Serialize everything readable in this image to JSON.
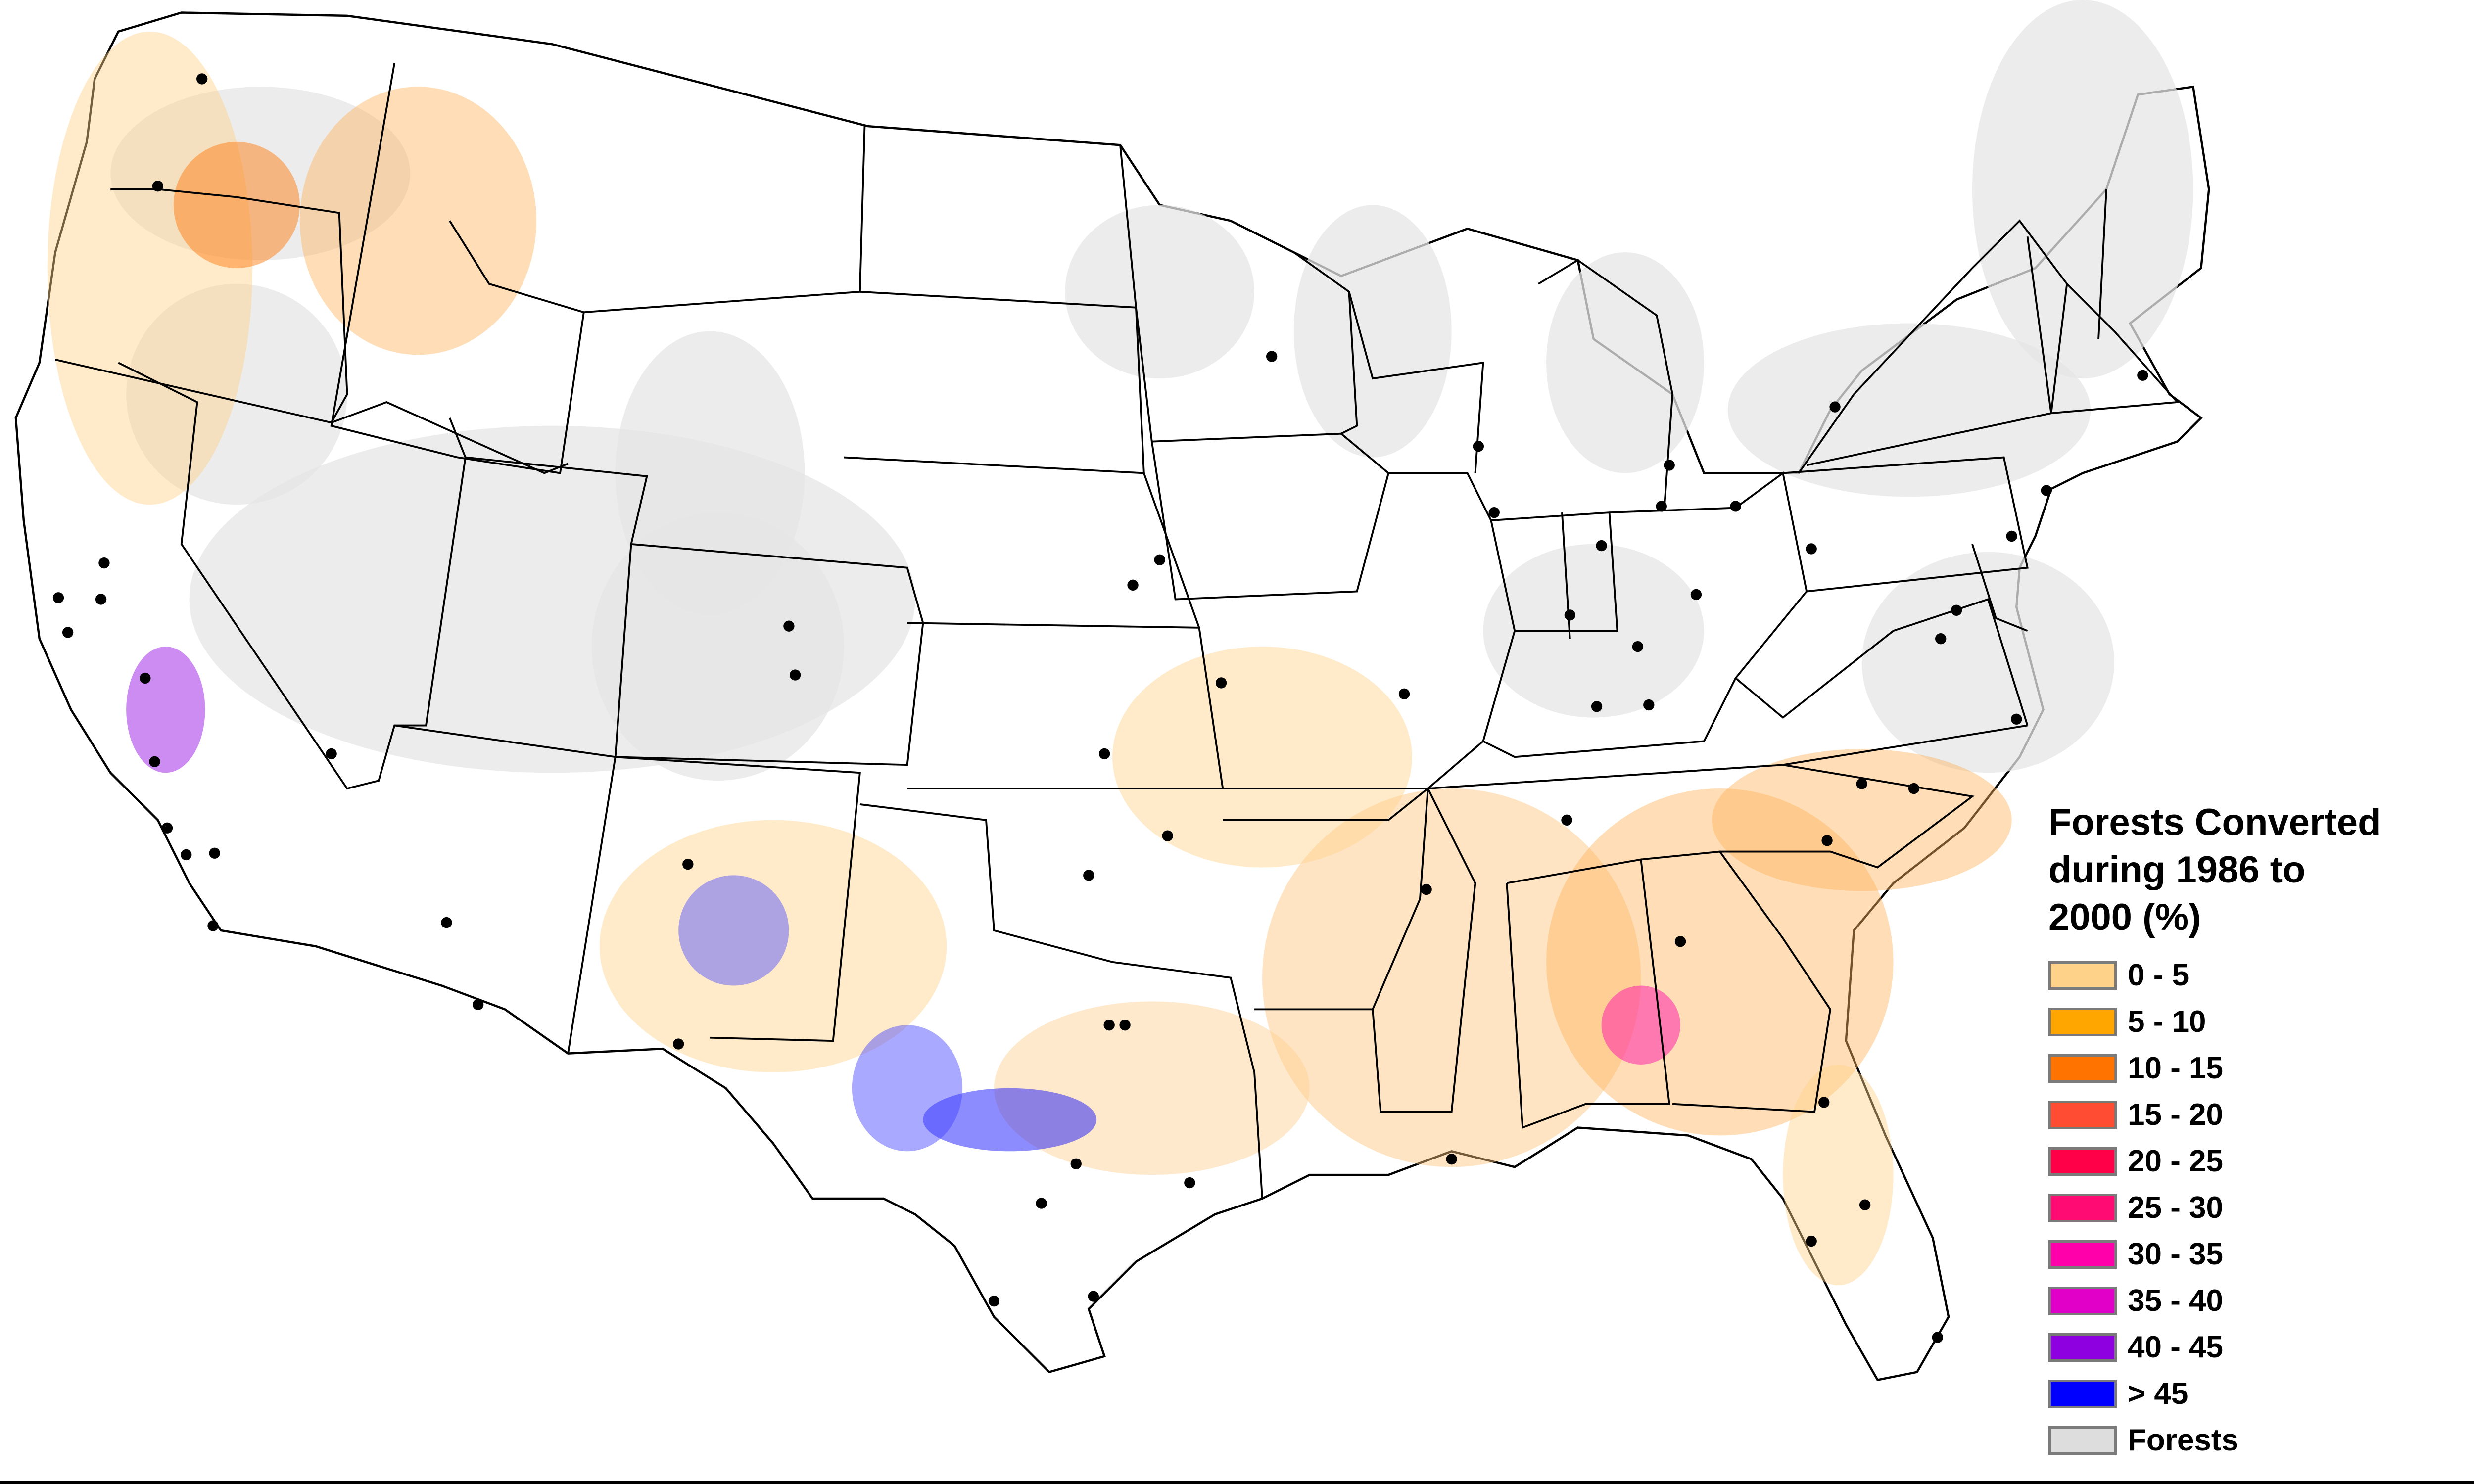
{
  "legend": {
    "title": "Forests Converted\nduring 1986 to\n2000 (%)",
    "items": [
      {
        "label": "0 - 5",
        "color": "#ffd28a"
      },
      {
        "label": "5 - 10",
        "color": "#ffa600"
      },
      {
        "label": "10 - 15",
        "color": "#ff7400"
      },
      {
        "label": "15 - 20",
        "color": "#ff4c33"
      },
      {
        "label": "20 - 25",
        "color": "#ff0048"
      },
      {
        "label": "25 - 30",
        "color": "#ff0b73"
      },
      {
        "label": "30 - 35",
        "color": "#ff00aa"
      },
      {
        "label": "35 - 40",
        "color": "#e000c8"
      },
      {
        "label": "40 - 45",
        "color": "#8e00e0"
      },
      {
        "label": "> 45",
        "color": "#0000ff"
      },
      {
        "label": "Forests",
        "color": "#dddddd"
      }
    ]
  },
  "map": {
    "projection": "conterminous-us",
    "marker_icon": "city-dot-icon",
    "colors": {
      "background": "#ffffff",
      "boundary": "#000000",
      "forest": "#dddddd",
      "low_conversion": "#ffd28a",
      "high_conversion": "#0000ff"
    }
  }
}
